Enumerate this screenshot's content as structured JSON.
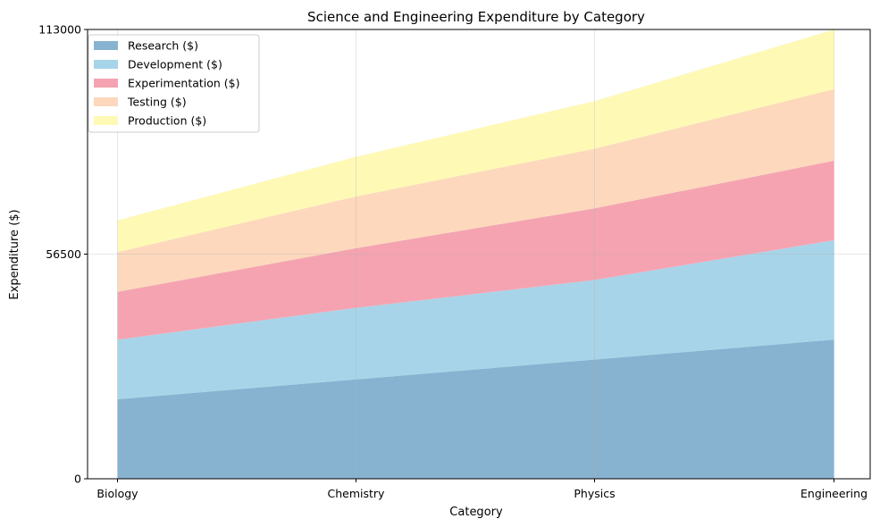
{
  "chart_data": {
    "type": "area",
    "stacked": true,
    "title": "Science and Engineering Expenditure by Category",
    "xlabel": "Category",
    "ylabel": "Expenditure ($)",
    "categories": [
      "Biology",
      "Chemistry",
      "Physics",
      "Engineering"
    ],
    "ylim": [
      0,
      113000
    ],
    "yticks": [
      0,
      56500,
      113000
    ],
    "grid": true,
    "legend_position": "top-left",
    "series": [
      {
        "name": "Research ($)",
        "color": "#87b3d1",
        "values": [
          20000,
          25000,
          30000,
          35000
        ]
      },
      {
        "name": "Development ($)",
        "color": "#a7d4e8",
        "values": [
          15000,
          18000,
          20000,
          25000
        ]
      },
      {
        "name": "Experimentation ($)",
        "color": "#f5a3b1",
        "values": [
          12000,
          15000,
          18000,
          20000
        ]
      },
      {
        "name": "Testing ($)",
        "color": "#fdd8bd",
        "values": [
          10000,
          13000,
          15000,
          18000
        ]
      },
      {
        "name": "Production ($)",
        "color": "#fff9b6",
        "values": [
          8000,
          10000,
          12000,
          15000
        ]
      }
    ]
  }
}
